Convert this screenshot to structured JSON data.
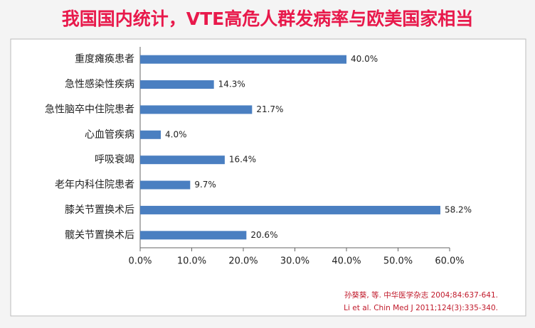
{
  "chart_data": {
    "type": "bar",
    "orientation": "horizontal",
    "title": "我国国内统计，VTE高危人群发病率与欧美国家相当",
    "categories": [
      "重度瘫痪患者",
      "急性感染性疾病",
      "急性脑卒中住院患者",
      "心血管疾病",
      "呼吸衰竭",
      "老年内科住院患者",
      "膝关节置换术后",
      "髋关节置换术后"
    ],
    "values": [
      40.0,
      14.3,
      21.7,
      4.0,
      16.4,
      9.7,
      58.2,
      20.6
    ],
    "value_labels": [
      "40.0%",
      "14.3%",
      "21.7%",
      "4.0%",
      "16.4%",
      "9.7%",
      "58.2%",
      "20.6%"
    ],
    "color": "#4a7fc1",
    "xlim": [
      0,
      60
    ],
    "xticks": [
      {
        "value": 0,
        "label": "0.0%"
      },
      {
        "value": 10,
        "label": "10.0%"
      },
      {
        "value": 20,
        "label": "20.0%"
      },
      {
        "value": 30,
        "label": "30.0%"
      },
      {
        "value": 40,
        "label": "40.0%"
      },
      {
        "value": 50,
        "label": "50.0%"
      },
      {
        "value": 60,
        "label": "60.0%"
      }
    ],
    "sources": [
      "孙葵葵, 等. 中华医学杂志 2004;84:637-641.",
      "Li et al. Chin Med J 2011;124(3):335-340."
    ]
  }
}
